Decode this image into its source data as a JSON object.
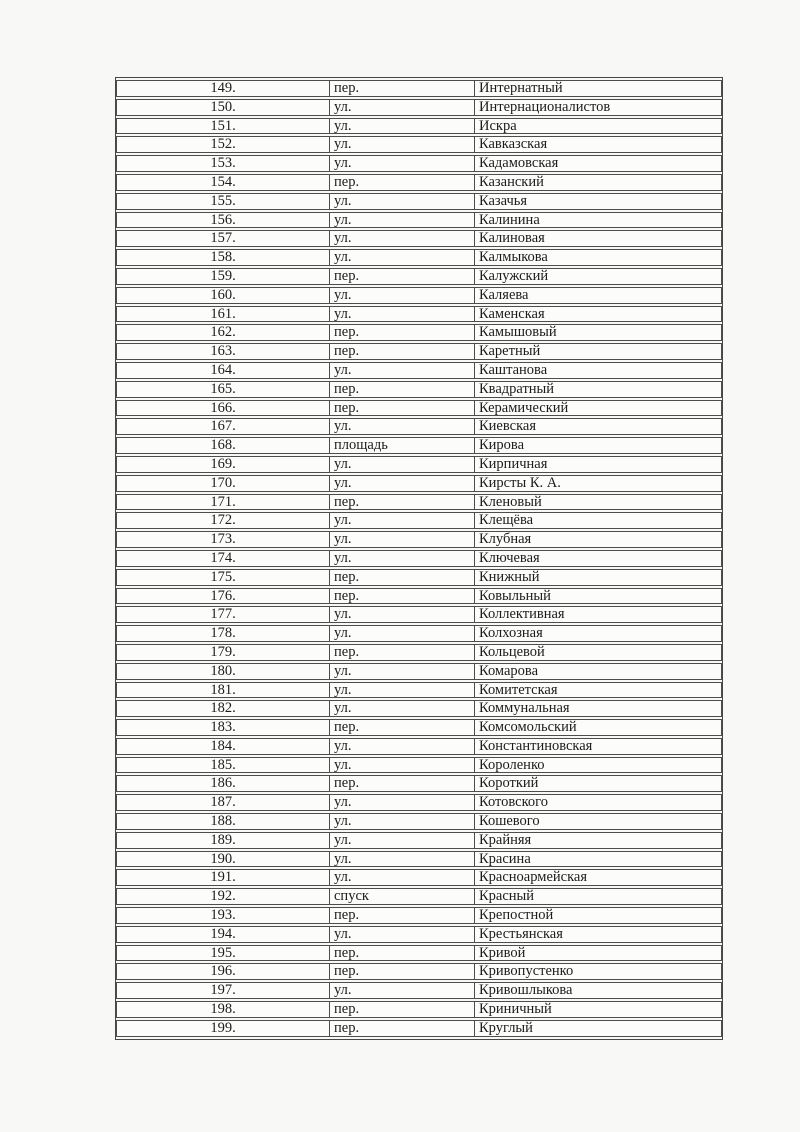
{
  "page": {
    "background_color": "#f8f8f7",
    "text_color": "#1c1c1c",
    "border_color": "#4d4d4d"
  },
  "table": {
    "rows": [
      {
        "num": "149.",
        "type": "пер.",
        "name": "Интернатный"
      },
      {
        "num": "150.",
        "type": "ул.",
        "name": "Интернационалистов"
      },
      {
        "num": "151.",
        "type": "ул.",
        "name": "Искра"
      },
      {
        "num": "152.",
        "type": "ул.",
        "name": "Кавказская"
      },
      {
        "num": "153.",
        "type": "ул.",
        "name": "Кадамовская"
      },
      {
        "num": "154.",
        "type": "пер.",
        "name": "Казанский"
      },
      {
        "num": "155.",
        "type": "ул.",
        "name": "Казачья"
      },
      {
        "num": "156.",
        "type": "ул.",
        "name": "Калинина"
      },
      {
        "num": "157.",
        "type": "ул.",
        "name": "Калиновая"
      },
      {
        "num": "158.",
        "type": "ул.",
        "name": "Калмыкова"
      },
      {
        "num": "159.",
        "type": "пер.",
        "name": "Калужский"
      },
      {
        "num": "160.",
        "type": "ул.",
        "name": "Каляева"
      },
      {
        "num": "161.",
        "type": "ул.",
        "name": "Каменская"
      },
      {
        "num": "162.",
        "type": "пер.",
        "name": "Камышовый"
      },
      {
        "num": "163.",
        "type": "пер.",
        "name": "Каретный"
      },
      {
        "num": "164.",
        "type": "ул.",
        "name": "Каштанова"
      },
      {
        "num": "165.",
        "type": "пер.",
        "name": "Квадратный"
      },
      {
        "num": "166.",
        "type": "пер.",
        "name": "Керамический"
      },
      {
        "num": "167.",
        "type": "ул.",
        "name": "Киевская"
      },
      {
        "num": "168.",
        "type": "площадь",
        "name": "Кирова"
      },
      {
        "num": "169.",
        "type": "ул.",
        "name": "Кирпичная"
      },
      {
        "num": "170.",
        "type": "ул.",
        "name": "Кирсты К. А."
      },
      {
        "num": "171.",
        "type": "пер.",
        "name": "Кленовый"
      },
      {
        "num": "172.",
        "type": "ул.",
        "name": "Клещёва"
      },
      {
        "num": "173.",
        "type": "ул.",
        "name": "Клубная"
      },
      {
        "num": "174.",
        "type": "ул.",
        "name": "Ключевая"
      },
      {
        "num": "175.",
        "type": "пер.",
        "name": "Книжный"
      },
      {
        "num": "176.",
        "type": "пер.",
        "name": "Ковыльный"
      },
      {
        "num": "177.",
        "type": "ул.",
        "name": "Коллективная"
      },
      {
        "num": "178.",
        "type": "ул.",
        "name": "Колхозная"
      },
      {
        "num": "179.",
        "type": "пер.",
        "name": "Кольцевой"
      },
      {
        "num": "180.",
        "type": "ул.",
        "name": "Комарова"
      },
      {
        "num": "181.",
        "type": "ул.",
        "name": "Комитетская"
      },
      {
        "num": "182.",
        "type": "ул.",
        "name": "Коммунальная"
      },
      {
        "num": "183.",
        "type": "пер.",
        "name": "Комсомольский"
      },
      {
        "num": "184.",
        "type": "ул.",
        "name": "Константиновская"
      },
      {
        "num": "185.",
        "type": "ул.",
        "name": "Короленко"
      },
      {
        "num": "186.",
        "type": "пер.",
        "name": "Короткий"
      },
      {
        "num": "187.",
        "type": "ул.",
        "name": "Котовского"
      },
      {
        "num": "188.",
        "type": "ул.",
        "name": "Кошевого"
      },
      {
        "num": "189.",
        "type": "ул.",
        "name": "Крайняя"
      },
      {
        "num": "190.",
        "type": "ул.",
        "name": "Красина"
      },
      {
        "num": "191.",
        "type": "ул.",
        "name": "Красноармейская"
      },
      {
        "num": "192.",
        "type": "спуск",
        "name": "Красный"
      },
      {
        "num": "193.",
        "type": "пер.",
        "name": "Крепостной"
      },
      {
        "num": "194.",
        "type": "ул.",
        "name": "Крестьянская"
      },
      {
        "num": "195.",
        "type": "пер.",
        "name": "Кривой"
      },
      {
        "num": "196.",
        "type": "пер.",
        "name": "Кривопустенко"
      },
      {
        "num": "197.",
        "type": "ул.",
        "name": "Кривошлыкова"
      },
      {
        "num": "198.",
        "type": "пер.",
        "name": "Криничный"
      },
      {
        "num": "199.",
        "type": "пер.",
        "name": "Круглый"
      }
    ]
  }
}
